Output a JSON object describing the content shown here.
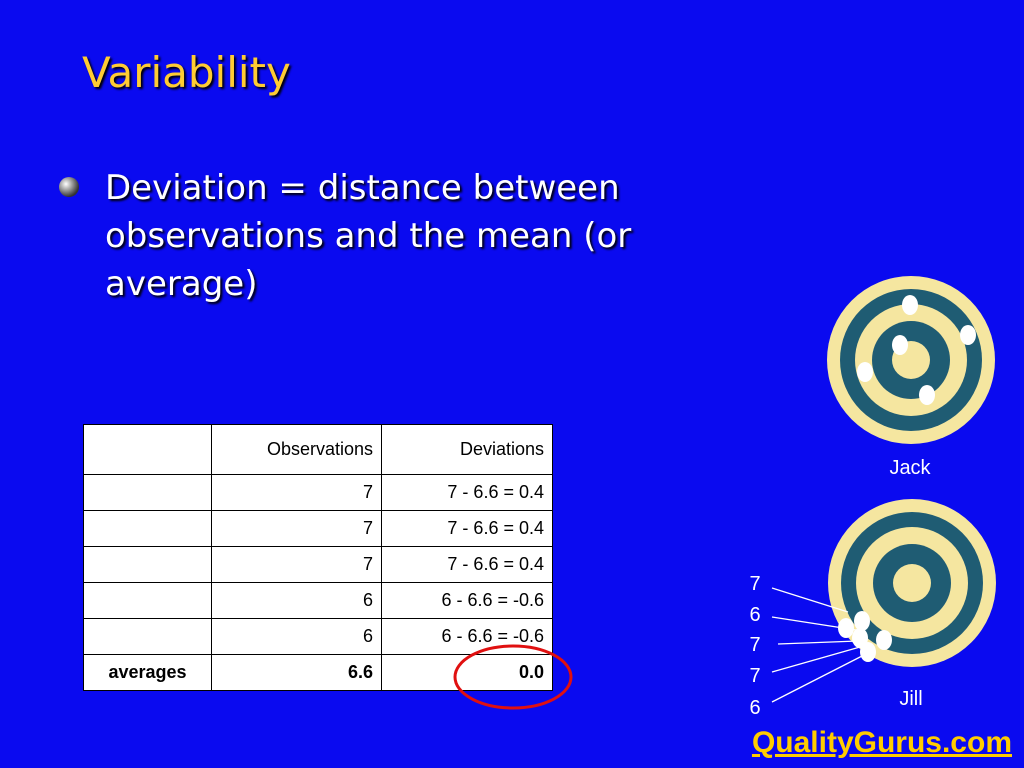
{
  "title": "Variability",
  "bullets": [
    "Deviation = distance between observations and the mean (or average)"
  ],
  "table": {
    "header": [
      "Observations",
      "Deviations"
    ],
    "rows": [
      [
        "7",
        "7 - 6.6 = 0.4"
      ],
      [
        "7",
        "7 - 6.6 = 0.4"
      ],
      [
        "7",
        "7 - 6.6 = 0.4"
      ],
      [
        "6",
        "6 - 6.6 = -0.6"
      ],
      [
        "6",
        "6 - 6.6 = -0.6"
      ]
    ],
    "summary": [
      "averages",
      "6.6",
      "0.0"
    ]
  },
  "targets": [
    {
      "label": "Jack"
    },
    {
      "label": "Jill",
      "observations": [
        "7",
        "6",
        "7",
        "7",
        "6"
      ]
    }
  ],
  "footer": "QualityGurus.com"
}
